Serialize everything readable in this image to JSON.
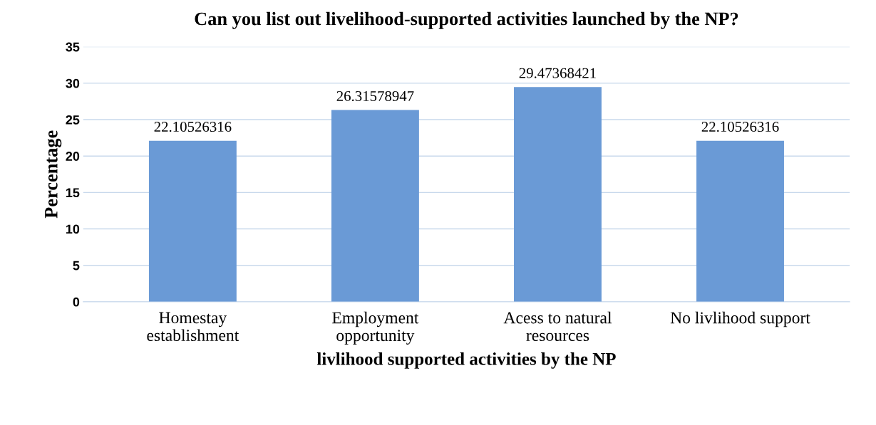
{
  "chart_data": {
    "type": "bar",
    "title": "Can you list out livelihood-supported activities launched by the NP?",
    "xlabel": "livlihood supported activities by the NP",
    "ylabel": "Percentage",
    "categories": [
      "Homestay\nestablishment",
      "Employment\nopportunity",
      "Acess to natural\nresources",
      "No livlihood support"
    ],
    "values": [
      22.10526316,
      26.31578947,
      29.47368421,
      22.10526316
    ],
    "color": "#6a9ad6",
    "ylim": [
      0,
      35
    ],
    "yticks": [
      0,
      5,
      10,
      15,
      20,
      25,
      30,
      35
    ],
    "grid": "y",
    "data_labels": true
  }
}
